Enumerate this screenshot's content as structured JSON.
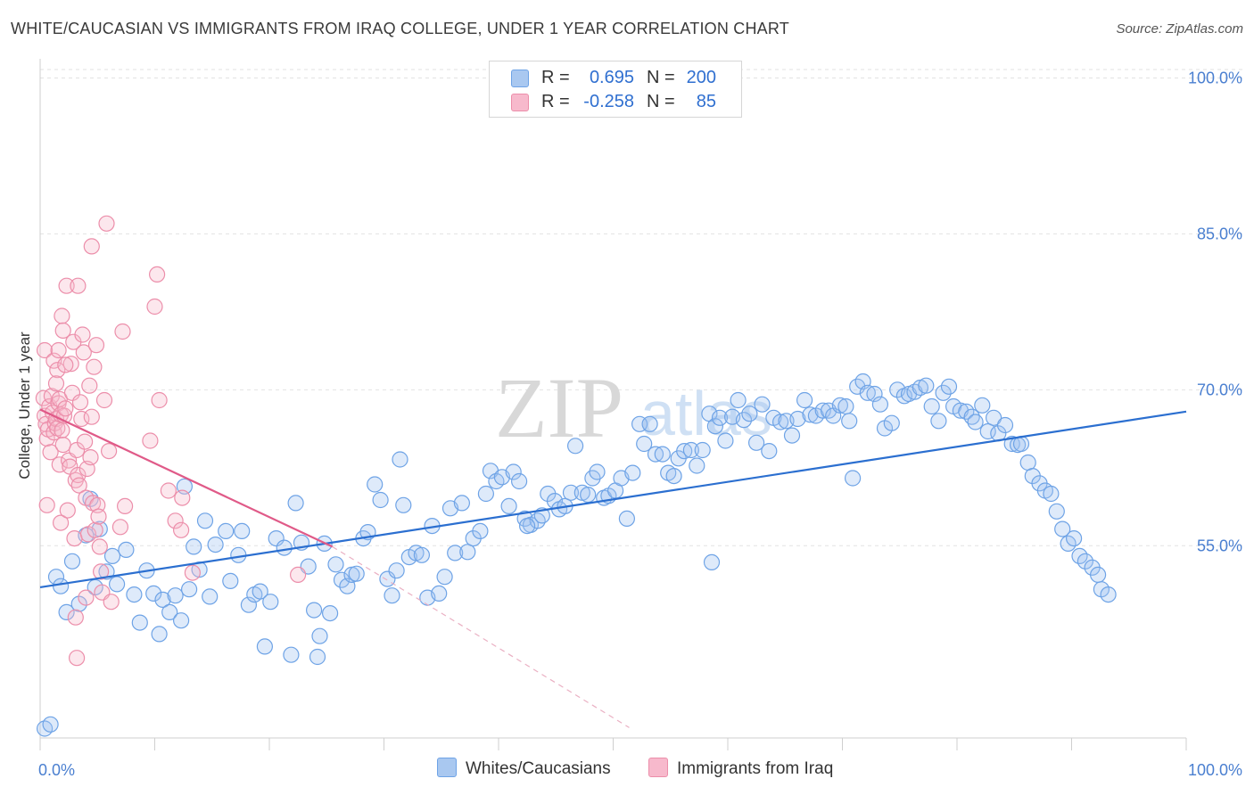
{
  "header": {
    "title": "WHITE/CAUCASIAN VS IMMIGRANTS FROM IRAQ COLLEGE, UNDER 1 YEAR CORRELATION CHART",
    "source": "Source: ZipAtlas.com"
  },
  "watermark": {
    "zip": "ZIP",
    "atlas": "atlas"
  },
  "legend": {
    "rows": [
      {
        "r_label": "R =",
        "r_value": "0.695",
        "n_label": "N =",
        "n_value": "200",
        "color": "#a9c8f0"
      },
      {
        "r_label": "R =",
        "r_value": "-0.258",
        "n_label": "N =",
        "n_value": "85",
        "color": "#f7b9cc"
      }
    ]
  },
  "bottom_legend": {
    "blue_label": "Whites/Caucasians",
    "pink_label": "Immigrants from Iraq"
  },
  "chart_data": {
    "type": "scatter",
    "title": "WHITE/CAUCASIAN VS IMMIGRANTS FROM IRAQ COLLEGE, UNDER 1 YEAR CORRELATION CHART",
    "xlabel": "",
    "ylabel": "College, Under 1 year",
    "xlim": [
      0,
      100
    ],
    "ylim": [
      36.5,
      101.5
    ],
    "x_tick_labels": [
      "0.0%",
      "100.0%"
    ],
    "y_ticks": [
      55,
      70,
      85,
      100
    ],
    "y_tick_labels": [
      "55.0%",
      "70.0%",
      "85.0%",
      "100.0%"
    ],
    "grid": true,
    "legend_position": "top-center",
    "colors": {
      "blue": "#5b9bdf",
      "blue_line": "#2b6fd0",
      "pink": "#f08aaa",
      "pink_line": "#e05a88"
    },
    "series": [
      {
        "name": "Whites/Caucasians",
        "color": "#5b9bdf",
        "trend": {
          "x": [
            0,
            100
          ],
          "y": [
            51.0,
            67.9
          ]
        },
        "points": [
          [
            0.4,
            37.4
          ],
          [
            0.9,
            37.8
          ],
          [
            1.4,
            52.0
          ],
          [
            1.8,
            51.1
          ],
          [
            2.3,
            48.6
          ],
          [
            2.8,
            53.5
          ],
          [
            3.4,
            49.4
          ],
          [
            4.0,
            56.0
          ],
          [
            4.4,
            59.5
          ],
          [
            4.8,
            51.0
          ],
          [
            5.2,
            56.6
          ],
          [
            5.8,
            52.5
          ],
          [
            6.3,
            54.0
          ],
          [
            6.7,
            51.3
          ],
          [
            7.5,
            54.6
          ],
          [
            8.2,
            50.3
          ],
          [
            8.7,
            47.6
          ],
          [
            9.3,
            52.6
          ],
          [
            9.9,
            50.4
          ],
          [
            10.4,
            46.5
          ],
          [
            10.7,
            49.8
          ],
          [
            11.3,
            48.6
          ],
          [
            11.8,
            50.2
          ],
          [
            12.3,
            47.8
          ],
          [
            12.6,
            60.7
          ],
          [
            13.0,
            50.8
          ],
          [
            13.4,
            54.9
          ],
          [
            13.9,
            52.7
          ],
          [
            14.4,
            57.4
          ],
          [
            14.8,
            50.1
          ],
          [
            15.3,
            55.1
          ],
          [
            16.2,
            56.4
          ],
          [
            16.6,
            51.6
          ],
          [
            17.3,
            54.1
          ],
          [
            17.6,
            56.4
          ],
          [
            18.2,
            49.3
          ],
          [
            18.7,
            50.3
          ],
          [
            19.2,
            50.6
          ],
          [
            19.6,
            45.3
          ],
          [
            20.1,
            49.6
          ],
          [
            20.6,
            55.7
          ],
          [
            21.3,
            54.8
          ],
          [
            21.9,
            44.5
          ],
          [
            22.3,
            59.1
          ],
          [
            22.8,
            55.3
          ],
          [
            23.4,
            53.0
          ],
          [
            23.9,
            48.8
          ],
          [
            24.4,
            46.3
          ],
          [
            24.8,
            55.2
          ],
          [
            25.3,
            48.5
          ],
          [
            25.8,
            53.2
          ],
          [
            26.3,
            51.7
          ],
          [
            26.8,
            51.1
          ],
          [
            27.2,
            52.2
          ],
          [
            27.6,
            52.3
          ],
          [
            28.2,
            55.7
          ],
          [
            28.6,
            56.3
          ],
          [
            29.2,
            60.9
          ],
          [
            29.7,
            59.4
          ],
          [
            30.3,
            51.8
          ],
          [
            30.7,
            50.2
          ],
          [
            31.4,
            63.3
          ],
          [
            31.7,
            58.9
          ],
          [
            32.2,
            53.9
          ],
          [
            32.8,
            54.3
          ],
          [
            33.3,
            54.1
          ],
          [
            33.8,
            50.0
          ],
          [
            34.2,
            56.9
          ],
          [
            34.8,
            50.4
          ],
          [
            35.3,
            52.0
          ],
          [
            35.8,
            58.6
          ],
          [
            36.2,
            54.3
          ],
          [
            36.8,
            59.1
          ],
          [
            37.3,
            54.4
          ],
          [
            37.8,
            55.7
          ],
          [
            38.4,
            56.4
          ],
          [
            38.9,
            60.0
          ],
          [
            39.3,
            62.2
          ],
          [
            39.8,
            61.2
          ],
          [
            40.3,
            61.6
          ],
          [
            40.9,
            58.8
          ],
          [
            41.3,
            62.1
          ],
          [
            41.8,
            61.2
          ],
          [
            42.3,
            57.6
          ],
          [
            42.8,
            57.0
          ],
          [
            43.4,
            57.4
          ],
          [
            43.8,
            57.9
          ],
          [
            44.3,
            60.0
          ],
          [
            44.9,
            59.3
          ],
          [
            45.3,
            58.5
          ],
          [
            45.8,
            58.8
          ],
          [
            46.3,
            60.1
          ],
          [
            46.7,
            64.6
          ],
          [
            47.3,
            60.1
          ],
          [
            47.8,
            59.9
          ],
          [
            48.2,
            61.5
          ],
          [
            48.6,
            62.1
          ],
          [
            49.2,
            59.6
          ],
          [
            49.6,
            59.8
          ],
          [
            50.2,
            60.3
          ],
          [
            50.7,
            61.5
          ],
          [
            51.2,
            57.6
          ],
          [
            51.7,
            62.0
          ],
          [
            52.3,
            66.7
          ],
          [
            52.7,
            64.8
          ],
          [
            53.2,
            66.7
          ],
          [
            53.7,
            63.8
          ],
          [
            54.3,
            63.8
          ],
          [
            54.8,
            62.0
          ],
          [
            55.3,
            61.7
          ],
          [
            55.7,
            63.4
          ],
          [
            56.2,
            64.1
          ],
          [
            56.8,
            64.2
          ],
          [
            57.3,
            62.7
          ],
          [
            57.8,
            64.2
          ],
          [
            58.4,
            67.7
          ],
          [
            58.9,
            66.5
          ],
          [
            59.3,
            67.3
          ],
          [
            59.8,
            65.1
          ],
          [
            60.4,
            67.4
          ],
          [
            60.9,
            69.0
          ],
          [
            61.4,
            67.1
          ],
          [
            61.9,
            67.7
          ],
          [
            62.5,
            64.9
          ],
          [
            63.0,
            68.6
          ],
          [
            63.6,
            64.1
          ],
          [
            64.0,
            67.3
          ],
          [
            64.6,
            66.9
          ],
          [
            65.1,
            67.0
          ],
          [
            65.6,
            65.6
          ],
          [
            66.1,
            67.2
          ],
          [
            66.7,
            69.0
          ],
          [
            67.2,
            67.6
          ],
          [
            67.7,
            67.5
          ],
          [
            68.3,
            68.0
          ],
          [
            68.8,
            68.0
          ],
          [
            69.2,
            67.5
          ],
          [
            69.8,
            68.5
          ],
          [
            70.3,
            68.4
          ],
          [
            70.6,
            67.0
          ],
          [
            71.3,
            70.3
          ],
          [
            71.8,
            70.8
          ],
          [
            72.2,
            69.7
          ],
          [
            72.8,
            69.6
          ],
          [
            73.3,
            68.6
          ],
          [
            73.7,
            66.3
          ],
          [
            74.3,
            66.8
          ],
          [
            74.8,
            70.0
          ],
          [
            75.4,
            69.4
          ],
          [
            75.8,
            69.6
          ],
          [
            76.3,
            69.8
          ],
          [
            76.8,
            70.2
          ],
          [
            77.3,
            70.4
          ],
          [
            77.8,
            68.4
          ],
          [
            78.4,
            67.0
          ],
          [
            78.8,
            69.7
          ],
          [
            79.3,
            70.3
          ],
          [
            79.7,
            68.4
          ],
          [
            80.3,
            68.0
          ],
          [
            80.8,
            67.9
          ],
          [
            81.3,
            67.4
          ],
          [
            81.6,
            66.9
          ],
          [
            82.2,
            68.5
          ],
          [
            82.7,
            66.0
          ],
          [
            83.2,
            67.3
          ],
          [
            83.6,
            65.8
          ],
          [
            84.2,
            66.6
          ],
          [
            84.8,
            64.8
          ],
          [
            85.3,
            64.7
          ],
          [
            85.6,
            64.8
          ],
          [
            86.2,
            63.0
          ],
          [
            86.6,
            61.7
          ],
          [
            87.2,
            61.0
          ],
          [
            87.7,
            60.3
          ],
          [
            88.2,
            60.0
          ],
          [
            88.7,
            58.3
          ],
          [
            89.2,
            56.6
          ],
          [
            89.7,
            55.2
          ],
          [
            90.2,
            55.7
          ],
          [
            90.7,
            54.0
          ],
          [
            91.2,
            53.5
          ],
          [
            91.8,
            52.9
          ],
          [
            92.3,
            52.2
          ],
          [
            92.6,
            50.8
          ],
          [
            93.2,
            50.3
          ],
          [
            70.9,
            61.5
          ],
          [
            58.6,
            53.4
          ],
          [
            24.2,
            44.3
          ],
          [
            31.1,
            52.6
          ],
          [
            42.5,
            56.9
          ]
        ]
      },
      {
        "name": "Immigrants from Iraq",
        "color": "#f08aaa",
        "trend": {
          "x": [
            0,
            25.5
          ],
          "y": [
            68.1,
            54.9
          ],
          "dashed_extension": {
            "x": [
              25.5,
              51.4
            ],
            "y": [
              54.9,
              37.5
            ]
          }
        },
        "points": [
          [
            0.3,
            69.2
          ],
          [
            0.4,
            67.5
          ],
          [
            0.5,
            66.7
          ],
          [
            0.6,
            65.3
          ],
          [
            0.7,
            66.2
          ],
          [
            0.8,
            68.4
          ],
          [
            0.9,
            64.0
          ],
          [
            1.0,
            69.4
          ],
          [
            1.1,
            67.8
          ],
          [
            1.2,
            65.9
          ],
          [
            1.3,
            66.8
          ],
          [
            1.4,
            67.2
          ],
          [
            1.5,
            66.3
          ],
          [
            1.6,
            68.7
          ],
          [
            1.7,
            69.1
          ],
          [
            1.8,
            67.6
          ],
          [
            1.9,
            66.1
          ],
          [
            2.0,
            64.7
          ],
          [
            2.1,
            67.5
          ],
          [
            2.2,
            68.2
          ],
          [
            0.4,
            73.8
          ],
          [
            1.2,
            72.8
          ],
          [
            1.5,
            71.9
          ],
          [
            1.6,
            73.8
          ],
          [
            1.7,
            62.8
          ],
          [
            1.8,
            57.2
          ],
          [
            1.9,
            77.1
          ],
          [
            2.0,
            75.7
          ],
          [
            2.3,
            80.0
          ],
          [
            2.4,
            58.4
          ],
          [
            2.5,
            63.2
          ],
          [
            2.6,
            62.6
          ],
          [
            2.7,
            72.5
          ],
          [
            2.8,
            69.7
          ],
          [
            2.9,
            74.6
          ],
          [
            3.0,
            55.7
          ],
          [
            3.1,
            61.3
          ],
          [
            3.2,
            64.2
          ],
          [
            3.3,
            61.8
          ],
          [
            3.4,
            60.8
          ],
          [
            3.5,
            68.8
          ],
          [
            3.6,
            67.2
          ],
          [
            3.7,
            75.3
          ],
          [
            3.8,
            73.6
          ],
          [
            3.9,
            65.0
          ],
          [
            4.0,
            59.6
          ],
          [
            4.1,
            62.4
          ],
          [
            4.2,
            56.1
          ],
          [
            4.3,
            70.4
          ],
          [
            4.4,
            63.5
          ],
          [
            4.5,
            67.4
          ],
          [
            4.6,
            59.1
          ],
          [
            4.7,
            72.2
          ],
          [
            4.8,
            56.5
          ],
          [
            4.9,
            74.3
          ],
          [
            5.0,
            58.9
          ],
          [
            5.1,
            57.8
          ],
          [
            5.2,
            54.9
          ],
          [
            5.3,
            52.5
          ],
          [
            5.4,
            50.5
          ],
          [
            5.6,
            69.0
          ],
          [
            5.8,
            86.0
          ],
          [
            6.0,
            64.1
          ],
          [
            3.3,
            80.0
          ],
          [
            4.5,
            83.8
          ],
          [
            7.2,
            75.6
          ],
          [
            7.0,
            56.8
          ],
          [
            7.4,
            58.8
          ],
          [
            9.6,
            65.1
          ],
          [
            10.2,
            81.1
          ],
          [
            10.4,
            69.0
          ],
          [
            10.0,
            78.0
          ],
          [
            11.2,
            60.3
          ],
          [
            11.8,
            57.4
          ],
          [
            12.3,
            56.5
          ],
          [
            12.4,
            59.6
          ],
          [
            13.3,
            52.4
          ],
          [
            22.5,
            52.2
          ],
          [
            3.1,
            48.1
          ],
          [
            3.2,
            44.2
          ],
          [
            4.0,
            50.0
          ],
          [
            6.2,
            49.6
          ],
          [
            2.2,
            72.4
          ],
          [
            1.4,
            70.6
          ],
          [
            0.6,
            58.9
          ]
        ]
      }
    ]
  }
}
